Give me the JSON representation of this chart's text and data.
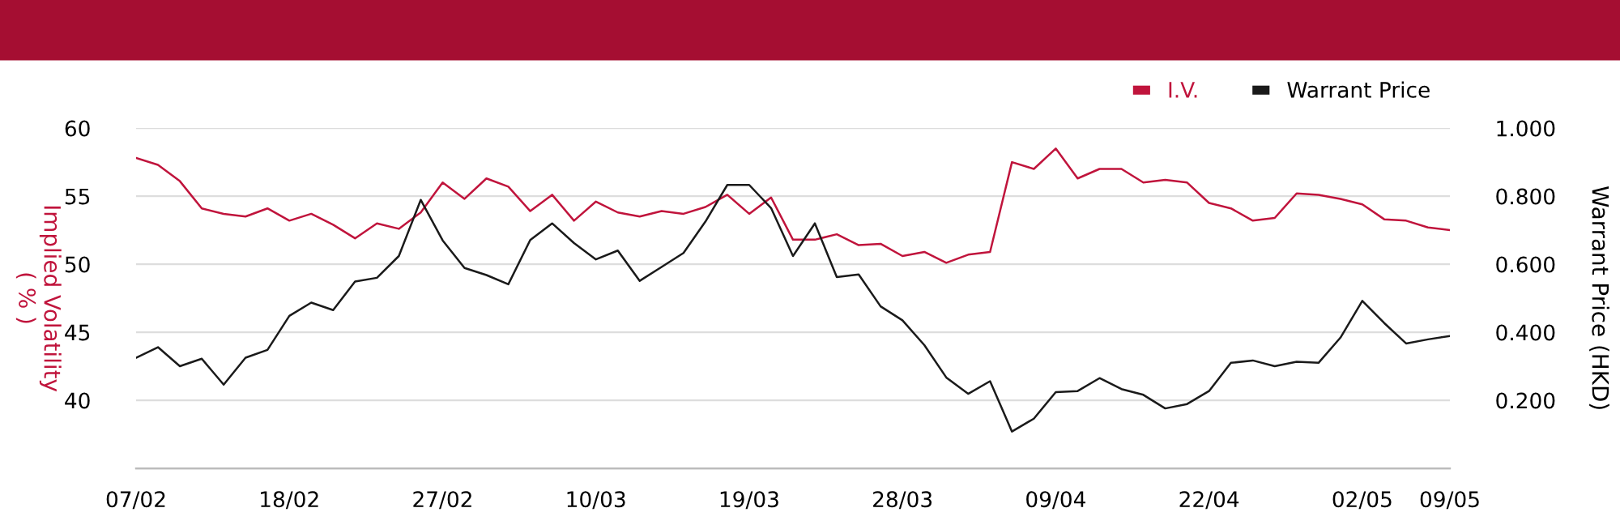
{
  "chart_data": {
    "type": "line",
    "categories": [
      "07/02",
      null,
      null,
      null,
      null,
      null,
      null,
      "18/02",
      null,
      null,
      null,
      null,
      null,
      null,
      "27/02",
      null,
      null,
      null,
      null,
      null,
      null,
      "10/03",
      null,
      null,
      null,
      null,
      null,
      null,
      "19/03",
      null,
      null,
      null,
      null,
      null,
      null,
      "28/03",
      null,
      null,
      null,
      null,
      null,
      null,
      "09/04",
      null,
      null,
      null,
      null,
      null,
      null,
      "22/04",
      null,
      null,
      null,
      null,
      null,
      null,
      "02/05",
      null,
      null,
      null,
      "09/05"
    ],
    "series": [
      {
        "name": "I.V.",
        "color": "#c0143c",
        "values": [
          57.8,
          57.3,
          56.1,
          54.1,
          53.7,
          53.5,
          54.1,
          53.2,
          53.7,
          52.9,
          51.9,
          53.0,
          52.6,
          53.8,
          56.0,
          54.8,
          56.3,
          55.7,
          53.9,
          55.1,
          53.2,
          54.6,
          53.8,
          53.5,
          53.9,
          53.7,
          54.2,
          55.1,
          53.7,
          54.9,
          51.8,
          51.8,
          52.2,
          51.4,
          51.5,
          50.6,
          50.9,
          50.1,
          50.7,
          50.9,
          57.5,
          57.0,
          58.5,
          56.3,
          57.0,
          57.0,
          56.0,
          56.2,
          56.0,
          54.5,
          54.1,
          53.2,
          53.4,
          55.2,
          55.1,
          54.8,
          54.4,
          53.3,
          53.2,
          52.7,
          52.5
        ]
      },
      {
        "name": "Warrant Price",
        "color": "#1a1a1a",
        "axis": "y2",
        "values": [
          0.325,
          0.356,
          0.3,
          0.322,
          0.246,
          0.325,
          0.348,
          0.448,
          0.487,
          0.465,
          0.549,
          0.56,
          0.624,
          0.789,
          0.67,
          0.589,
          0.568,
          0.541,
          0.671,
          0.72,
          0.662,
          0.614,
          0.64,
          0.551,
          0.592,
          0.633,
          0.725,
          0.833,
          0.833,
          0.765,
          0.624,
          0.72,
          0.562,
          0.57,
          0.476,
          0.435,
          0.362,
          0.267,
          0.219,
          0.256,
          0.108,
          0.146,
          0.224,
          0.227,
          0.265,
          0.233,
          0.216,
          0.176,
          0.189,
          0.227,
          0.31,
          0.317,
          0.3,
          0.313,
          0.31,
          0.384,
          0.492,
          0.427,
          0.367,
          0.379,
          0.389
        ]
      }
    ],
    "ylabel": "Implied Volatility\n( % )",
    "y2label": "Warrant Price (HKD)",
    "ylim": [
      35,
      60
    ],
    "yticks": [
      40,
      45,
      50,
      55,
      60
    ],
    "y2lim": [
      0,
      1
    ],
    "y2ticks": [
      {
        "value": 0,
        "label": null
      },
      {
        "value": 0.2,
        "label": "0.200"
      },
      {
        "value": 0.4,
        "label": "0.400"
      },
      {
        "value": 0.6,
        "label": "0.600"
      },
      {
        "value": 0.8,
        "label": "0.800"
      },
      {
        "value": 1.0,
        "label": "1.000"
      }
    ],
    "grid": "y",
    "legend": "top right",
    "line_style": "solid",
    "marker": "none"
  }
}
